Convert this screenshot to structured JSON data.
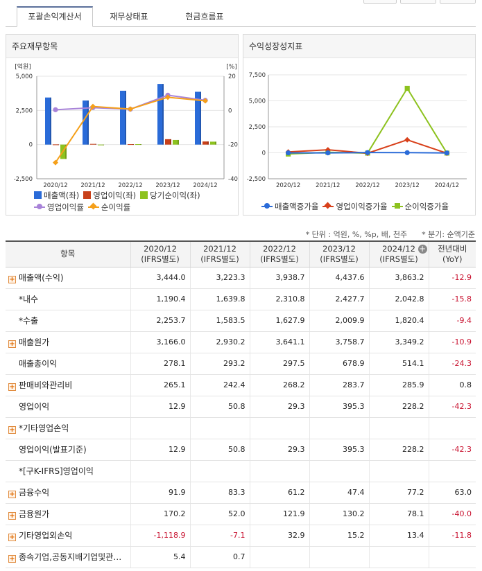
{
  "tabs": [
    {
      "label": "포괄손익계산서",
      "active": true
    },
    {
      "label": "재무상태표",
      "active": false
    },
    {
      "label": "현금흐름표",
      "active": false
    }
  ],
  "left_panel": {
    "title": "주요재무항목",
    "legend": [
      {
        "label": "매출액(좌)",
        "color": "#2a6bd8",
        "type": "bar"
      },
      {
        "label": "영업이익(좌)",
        "color": "#c8401a",
        "type": "bar"
      },
      {
        "label": "당기순이익(좌)",
        "color": "#8dc21f",
        "type": "bar"
      },
      {
        "label": "영업이익률",
        "color": "#a883d8",
        "type": "line"
      },
      {
        "label": "순이익률",
        "color": "#f5a01a",
        "type": "line"
      }
    ]
  },
  "right_panel": {
    "title": "수익성장성지표",
    "legend": [
      {
        "label": "매출액증가율",
        "color": "#2a6bd8"
      },
      {
        "label": "영업이익증가율",
        "color": "#d8401a"
      },
      {
        "label": "순이익증가율",
        "color": "#8dc21f"
      }
    ]
  },
  "chart_data": [
    {
      "type": "bar",
      "title": "주요재무항목",
      "categories": [
        "2020/12",
        "2021/12",
        "2022/12",
        "2023/12",
        "2024/12"
      ],
      "y_left_label": "[억원]",
      "y_right_label": "[%]",
      "y_left_ticks": [
        "5,000",
        "2,500",
        "0",
        "-2,500"
      ],
      "y_right_ticks": [
        "20",
        "0",
        "-20",
        "-40"
      ],
      "ylim_left": [
        -2500,
        5000
      ],
      "ylim_right": [
        -40,
        20
      ],
      "series": [
        {
          "name": "매출액(좌)",
          "axis": "left",
          "kind": "bar",
          "values": [
            3444.0,
            3223.3,
            3938.7,
            4437.6,
            3863.2
          ]
        },
        {
          "name": "영업이익(좌)",
          "axis": "left",
          "kind": "bar",
          "values": [
            12.9,
            50.8,
            29.3,
            395.3,
            228.2
          ]
        },
        {
          "name": "당기순이익(좌)",
          "axis": "left",
          "kind": "bar",
          "values": [
            -1050,
            -40,
            30,
            340,
            215
          ]
        },
        {
          "name": "영업이익률",
          "axis": "right",
          "kind": "line",
          "values": [
            0.4,
            1.6,
            0.7,
            8.9,
            5.9
          ]
        },
        {
          "name": "순이익률",
          "axis": "right",
          "kind": "line",
          "values": [
            -30.5,
            2.3,
            0.8,
            7.7,
            5.6
          ]
        }
      ]
    },
    {
      "type": "line",
      "title": "수익성장성지표",
      "categories": [
        "2020/12",
        "2021/12",
        "2022/12",
        "2023/12",
        "2024/12"
      ],
      "y_ticks": [
        "7,500",
        "5,000",
        "2,500",
        "0",
        "-2,500"
      ],
      "ylim": [
        -2500,
        7500
      ],
      "series": [
        {
          "name": "매출액증가율",
          "values": [
            -5,
            -6.4,
            22.2,
            12.7,
            -12.9
          ]
        },
        {
          "name": "영업이익증가율",
          "values": [
            80,
            293.8,
            -42.3,
            1249.2,
            -42.3
          ]
        },
        {
          "name": "순이익증가율",
          "values": [
            -120,
            50,
            -30,
            6200,
            -25
          ]
        }
      ]
    }
  ],
  "notes": {
    "unit": "* 단위 : 억원, %, %p, 배, 천주",
    "basis": "* 분기: 순액기준"
  },
  "table": {
    "headers": [
      {
        "line1": "항목",
        "line2": ""
      },
      {
        "line1": "2020/12",
        "line2": "(IFRS별도)"
      },
      {
        "line1": "2021/12",
        "line2": "(IFRS별도)"
      },
      {
        "line1": "2022/12",
        "line2": "(IFRS별도)"
      },
      {
        "line1": "2023/12",
        "line2": "(IFRS별도)"
      },
      {
        "line1": "2024/12",
        "line2": "(IFRS별도)"
      },
      {
        "line1": "전년대비",
        "line2": "(YoY)"
      }
    ],
    "rows": [
      {
        "label": "매출액(수익)",
        "expand": true,
        "values": [
          "3,444.0",
          "3,223.3",
          "3,938.7",
          "4,437.6",
          "3,863.2",
          "-12.9"
        ]
      },
      {
        "label": "*내수",
        "expand": false,
        "values": [
          "1,190.4",
          "1,639.8",
          "2,310.8",
          "2,427.7",
          "2,042.8",
          "-15.8"
        ]
      },
      {
        "label": "*수출",
        "expand": false,
        "values": [
          "2,253.7",
          "1,583.5",
          "1,627.9",
          "2,009.9",
          "1,820.4",
          "-9.4"
        ]
      },
      {
        "label": "매출원가",
        "expand": true,
        "values": [
          "3,166.0",
          "2,930.2",
          "3,641.1",
          "3,758.7",
          "3,349.2",
          "-10.9"
        ]
      },
      {
        "label": "매출총이익",
        "expand": false,
        "values": [
          "278.1",
          "293.2",
          "297.5",
          "678.9",
          "514.1",
          "-24.3"
        ]
      },
      {
        "label": "판매비와관리비",
        "expand": true,
        "values": [
          "265.1",
          "242.4",
          "268.2",
          "283.7",
          "285.9",
          "0.8"
        ]
      },
      {
        "label": "영업이익",
        "expand": false,
        "values": [
          "12.9",
          "50.8",
          "29.3",
          "395.3",
          "228.2",
          "-42.3"
        ]
      },
      {
        "label": "*기타영업손익",
        "expand": true,
        "values": [
          "",
          "",
          "",
          "",
          "",
          ""
        ]
      },
      {
        "label": "영업이익(발표기준)",
        "expand": false,
        "values": [
          "12.9",
          "50.8",
          "29.3",
          "395.3",
          "228.2",
          "-42.3"
        ]
      },
      {
        "label": "*[구K-IFRS]영업이익",
        "expand": false,
        "values": [
          "",
          "",
          "",
          "",
          "",
          ""
        ]
      },
      {
        "label": "금융수익",
        "expand": true,
        "values": [
          "91.9",
          "83.3",
          "61.2",
          "47.4",
          "77.2",
          "63.0"
        ]
      },
      {
        "label": "금융원가",
        "expand": true,
        "values": [
          "170.2",
          "52.0",
          "121.9",
          "130.2",
          "78.1",
          "-40.0"
        ]
      },
      {
        "label": "기타영업외손익",
        "expand": true,
        "values": [
          "-1,118.9",
          "-7.1",
          "32.9",
          "15.2",
          "13.4",
          "-11.8"
        ]
      },
      {
        "label": "종속기업,공동지배기업및관…",
        "expand": true,
        "values": [
          "5.4",
          "0.7",
          "",
          "",
          "",
          ""
        ]
      }
    ]
  }
}
